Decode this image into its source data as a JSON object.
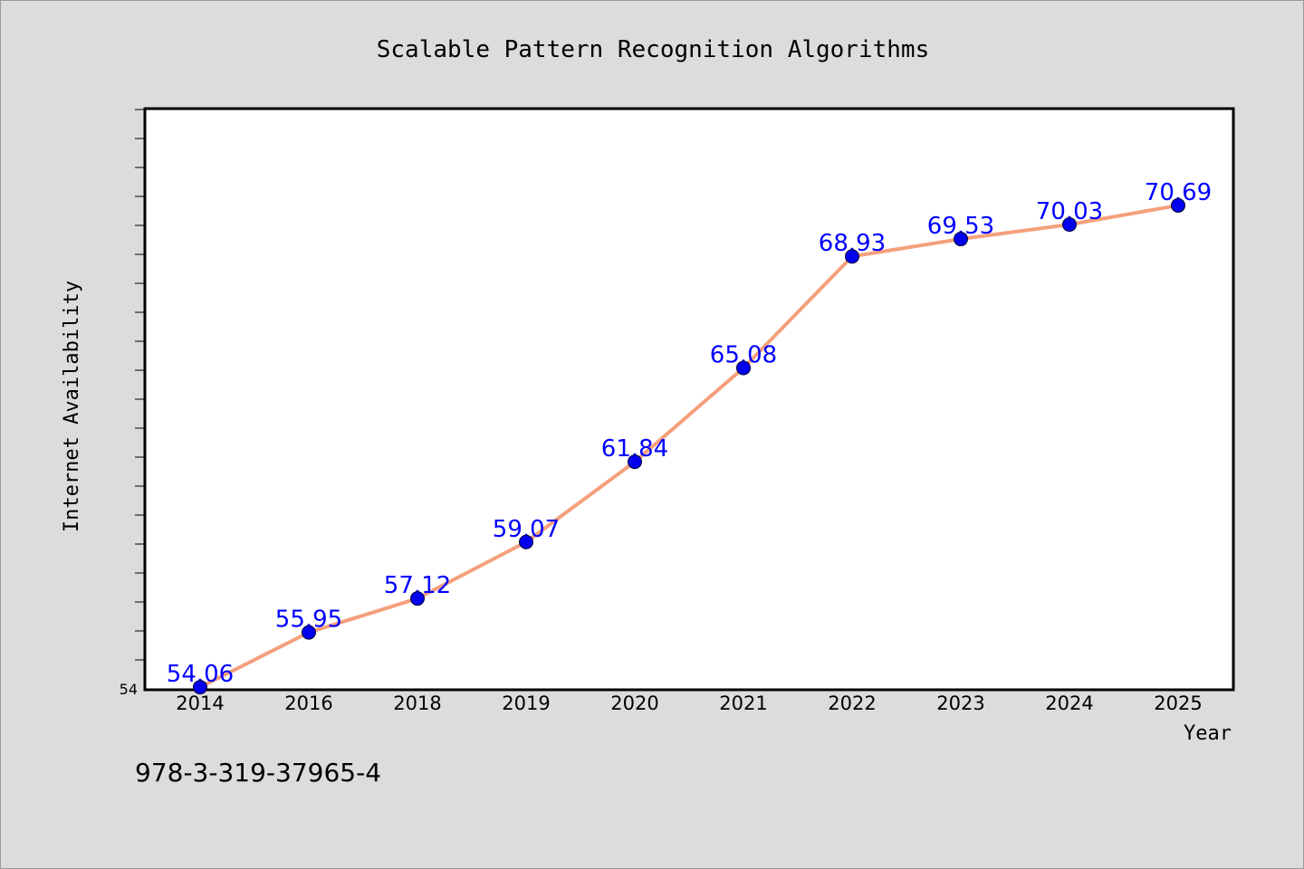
{
  "chart_data": {
    "type": "line",
    "title": "Scalable Pattern Recognition Algorithms",
    "xlabel": "Year",
    "ylabel": "Internet Availability",
    "categories": [
      "2014",
      "2016",
      "2018",
      "2019",
      "2020",
      "2021",
      "2022",
      "2023",
      "2024",
      "2025"
    ],
    "values": [
      54.06,
      55.95,
      57.12,
      59.07,
      61.84,
      65.08,
      68.93,
      69.53,
      70.03,
      70.69
    ],
    "data_labels": [
      "54.06",
      "55.95",
      "57.12",
      "59.07",
      "61.84",
      "65.08",
      "68.93",
      "69.53",
      "70.03",
      "70.69"
    ],
    "y_tick_labels": [
      "54"
    ],
    "ylim": [
      54,
      74
    ],
    "grid": false,
    "line_color": "#f4a07c",
    "marker_color": "#0000ee",
    "label_color": "#0000ff",
    "background_color": "#dcdcdc",
    "plot_background_color": "#ffffff"
  },
  "footer": {
    "isbn": "978-3-319-37965-4"
  }
}
